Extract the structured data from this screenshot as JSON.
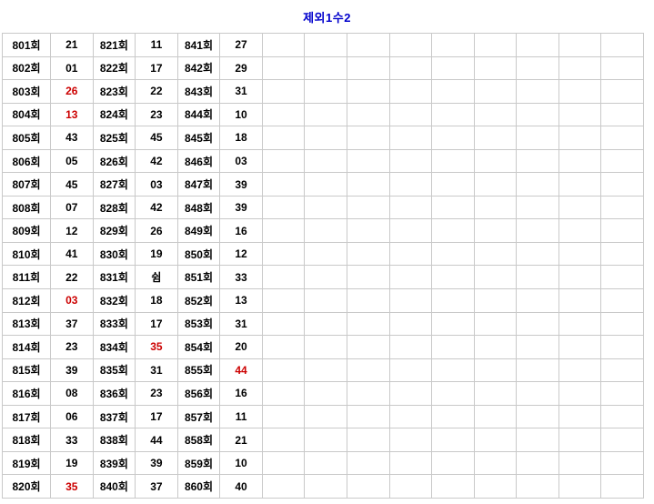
{
  "page": {
    "title": "제외1수2"
  },
  "colors": {
    "title": "#0000cc",
    "highlight_red": "#cc0000",
    "cell_text": "#000000",
    "table_border": "#c9c9c9",
    "background": "#ffffff"
  },
  "table": {
    "data_column_count": 6,
    "empty_column_count": 9,
    "rows": [
      {
        "c": [
          "801회",
          "21",
          "821회",
          "11",
          "841회",
          "27"
        ],
        "red": []
      },
      {
        "c": [
          "802회",
          "01",
          "822회",
          "17",
          "842회",
          "29"
        ],
        "red": []
      },
      {
        "c": [
          "803회",
          "26",
          "823회",
          "22",
          "843회",
          "31"
        ],
        "red": [
          1
        ]
      },
      {
        "c": [
          "804회",
          "13",
          "824회",
          "23",
          "844회",
          "10"
        ],
        "red": [
          1
        ]
      },
      {
        "c": [
          "805회",
          "43",
          "825회",
          "45",
          "845회",
          "18"
        ],
        "red": []
      },
      {
        "c": [
          "806회",
          "05",
          "826회",
          "42",
          "846회",
          "03"
        ],
        "red": []
      },
      {
        "c": [
          "807회",
          "45",
          "827회",
          "03",
          "847회",
          "39"
        ],
        "red": []
      },
      {
        "c": [
          "808회",
          "07",
          "828회",
          "42",
          "848회",
          "39"
        ],
        "red": []
      },
      {
        "c": [
          "809회",
          "12",
          "829회",
          "26",
          "849회",
          "16"
        ],
        "red": []
      },
      {
        "c": [
          "810회",
          "41",
          "830회",
          "19",
          "850회",
          "12"
        ],
        "red": []
      },
      {
        "c": [
          "811회",
          "22",
          "831회",
          "쉼",
          "851회",
          "33"
        ],
        "red": []
      },
      {
        "c": [
          "812회",
          "03",
          "832회",
          "18",
          "852회",
          "13"
        ],
        "red": [
          1
        ]
      },
      {
        "c": [
          "813회",
          "37",
          "833회",
          "17",
          "853회",
          "31"
        ],
        "red": []
      },
      {
        "c": [
          "814회",
          "23",
          "834회",
          "35",
          "854회",
          "20"
        ],
        "red": [
          3
        ]
      },
      {
        "c": [
          "815회",
          "39",
          "835회",
          "31",
          "855회",
          "44"
        ],
        "red": [
          5
        ]
      },
      {
        "c": [
          "816회",
          "08",
          "836회",
          "23",
          "856회",
          "16"
        ],
        "red": []
      },
      {
        "c": [
          "817회",
          "06",
          "837회",
          "17",
          "857회",
          "11"
        ],
        "red": []
      },
      {
        "c": [
          "818회",
          "33",
          "838회",
          "44",
          "858회",
          "21"
        ],
        "red": []
      },
      {
        "c": [
          "819회",
          "19",
          "839회",
          "39",
          "859회",
          "10"
        ],
        "red": []
      },
      {
        "c": [
          "820회",
          "35",
          "840회",
          "37",
          "860회",
          "40"
        ],
        "red": [
          1
        ]
      }
    ]
  }
}
